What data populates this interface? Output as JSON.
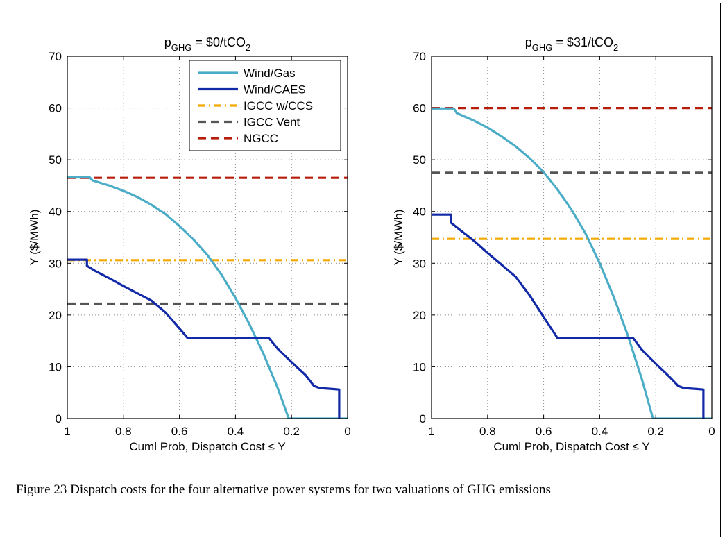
{
  "figure": {
    "caption": "Figure 23 Dispatch costs for the four alternative power systems for two valuations of GHG emissions"
  },
  "chart_data": [
    {
      "type": "line",
      "title": {
        "base": "p",
        "sub": "GHG",
        "mid": " = $0/tCO",
        "sub2": "2"
      },
      "xlabel": "Cuml Prob, Dispatch Cost ≤ Y",
      "ylabel": "Y ($/MWh)",
      "xlim": [
        1,
        0
      ],
      "ylim": [
        0,
        70
      ],
      "xticks": [
        1,
        0.8,
        0.6,
        0.4,
        0.2,
        0
      ],
      "xtick_labels": [
        "1",
        "0.8",
        "0.6",
        "0.4",
        "0.2",
        "0"
      ],
      "yticks": [
        0,
        10,
        20,
        30,
        40,
        50,
        60,
        70
      ],
      "ytick_labels": [
        "0",
        "10",
        "20",
        "30",
        "40",
        "50",
        "60",
        "70"
      ],
      "grid": true,
      "legend": "top-right",
      "series": [
        {
          "name": "Wind/Gas",
          "color": "#4aacc6",
          "style": "solid",
          "x": [
            1,
            0.92,
            0.91,
            0.85,
            0.8,
            0.75,
            0.7,
            0.65,
            0.6,
            0.55,
            0.5,
            0.45,
            0.4,
            0.35,
            0.3,
            0.25,
            0.21,
            0.2,
            0.1,
            0
          ],
          "y": [
            46.6,
            46.6,
            46,
            45,
            44,
            42.8,
            41.3,
            39.5,
            37.2,
            34.6,
            31.6,
            27.8,
            23.3,
            18.2,
            12.5,
            6.0,
            0,
            0,
            0,
            0
          ]
        },
        {
          "name": "Wind/CAES",
          "color": "#1229a8",
          "style": "solid",
          "x": [
            1,
            0.93,
            0.93,
            0.9,
            0.85,
            0.8,
            0.75,
            0.7,
            0.65,
            0.6,
            0.57,
            0.55,
            0.45,
            0.35,
            0.28,
            0.25,
            0.2,
            0.15,
            0.12,
            0.1,
            0.05,
            0.03,
            0.03
          ],
          "y": [
            30.7,
            30.7,
            29.5,
            28.5,
            27.1,
            25.6,
            24.2,
            22.8,
            20.5,
            17.4,
            15.5,
            15.5,
            15.5,
            15.5,
            15.5,
            13.5,
            10.9,
            8.4,
            6.3,
            5.9,
            5.7,
            5.6,
            0
          ]
        },
        {
          "name": "IGCC w/CCS",
          "color": "#f2a900",
          "style": "dashdot",
          "x": [
            1,
            0
          ],
          "y": [
            30.6,
            30.6
          ]
        },
        {
          "name": "IGCC Vent",
          "color": "#555555",
          "style": "dashed",
          "x": [
            1,
            0
          ],
          "y": [
            22.2,
            22.2
          ]
        },
        {
          "name": "NGCC",
          "color": "#b81d0c",
          "style": "dashed",
          "x": [
            1,
            0
          ],
          "y": [
            46.5,
            46.5
          ]
        }
      ]
    },
    {
      "type": "line",
      "title": {
        "base": "p",
        "sub": "GHG",
        "mid": " = $31/tCO",
        "sub2": "2"
      },
      "xlabel": "Cuml Prob, Dispatch Cost ≤ Y",
      "ylabel": "Y ($/MWh)",
      "xlim": [
        1,
        0
      ],
      "ylim": [
        0,
        70
      ],
      "xticks": [
        1,
        0.8,
        0.6,
        0.4,
        0.2,
        0
      ],
      "xtick_labels": [
        "1",
        "0.8",
        "0.6",
        "0.4",
        "0.2",
        "0"
      ],
      "yticks": [
        0,
        10,
        20,
        30,
        40,
        50,
        60,
        70
      ],
      "ytick_labels": [
        "0",
        "10",
        "20",
        "30",
        "40",
        "50",
        "60",
        "70"
      ],
      "grid": true,
      "legend": "none",
      "series": [
        {
          "name": "Wind/Gas",
          "color": "#4aacc6",
          "style": "solid",
          "x": [
            1,
            0.92,
            0.91,
            0.85,
            0.8,
            0.75,
            0.7,
            0.65,
            0.6,
            0.55,
            0.5,
            0.45,
            0.4,
            0.35,
            0.3,
            0.25,
            0.21,
            0.2,
            0.1,
            0
          ],
          "y": [
            59.9,
            59.9,
            59,
            57.6,
            56.2,
            54.5,
            52.6,
            50.3,
            47.6,
            44.2,
            40.3,
            35.7,
            30.0,
            23.5,
            16.1,
            7.7,
            0,
            0,
            0,
            0
          ]
        },
        {
          "name": "Wind/CAES",
          "color": "#1229a8",
          "style": "solid",
          "x": [
            1,
            0.93,
            0.93,
            0.9,
            0.85,
            0.8,
            0.75,
            0.7,
            0.65,
            0.6,
            0.55,
            0.55,
            0.45,
            0.35,
            0.28,
            0.25,
            0.2,
            0.15,
            0.12,
            0.1,
            0.05,
            0.03,
            0.03
          ],
          "y": [
            39.4,
            39.4,
            37.8,
            36.5,
            34.4,
            32.0,
            29.7,
            27.4,
            23.8,
            19.6,
            15.5,
            15.5,
            15.5,
            15.5,
            15.5,
            13.3,
            10.6,
            8.0,
            6.3,
            5.9,
            5.7,
            5.6,
            0
          ]
        },
        {
          "name": "IGCC w/CCS",
          "color": "#f2a900",
          "style": "dashdot",
          "x": [
            1,
            0
          ],
          "y": [
            34.7,
            34.7
          ]
        },
        {
          "name": "IGCC Vent",
          "color": "#555555",
          "style": "dashed",
          "x": [
            1,
            0
          ],
          "y": [
            47.5,
            47.5
          ]
        },
        {
          "name": "NGCC",
          "color": "#b81d0c",
          "style": "dashed",
          "x": [
            1,
            0
          ],
          "y": [
            60,
            60
          ]
        }
      ]
    }
  ]
}
